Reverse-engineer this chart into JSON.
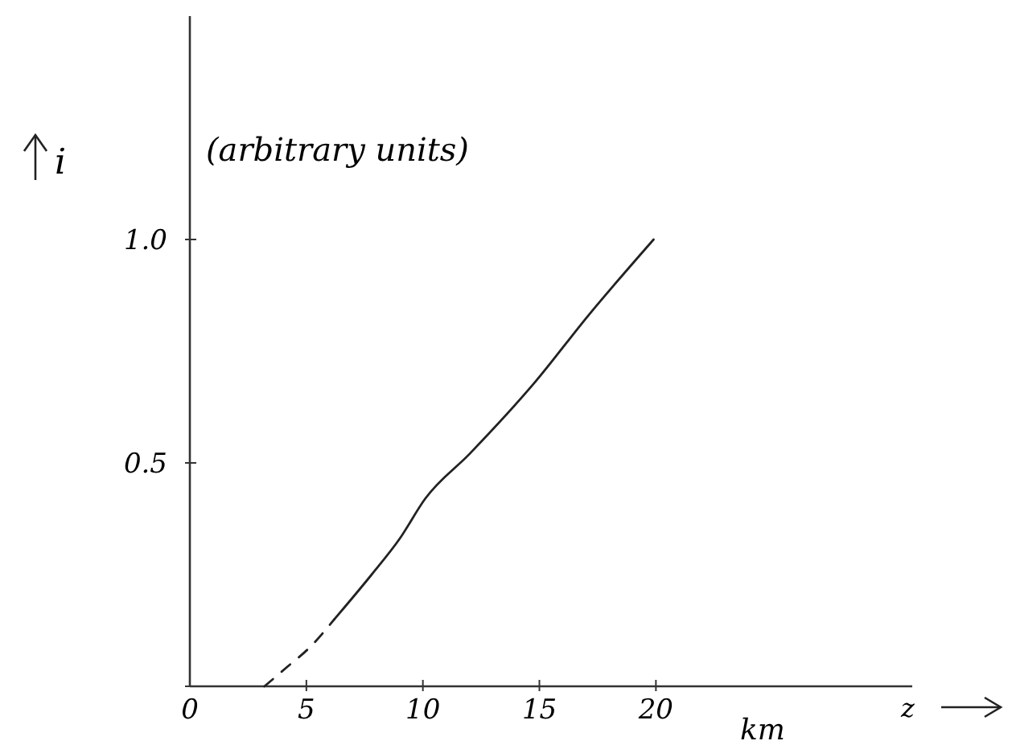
{
  "chart_data": {
    "type": "line",
    "xlabel": "z",
    "ylabel": "i",
    "annotations": [
      "(arbitrary units)",
      "km"
    ],
    "xlim": [
      0,
      31
    ],
    "ylim": [
      0,
      1.5
    ],
    "xticks": [
      0,
      5,
      10,
      15,
      20
    ],
    "yticks": [
      {
        "value": 0,
        "label": null
      },
      0.5,
      {
        "value": 1,
        "label": "1.0"
      }
    ],
    "grid": false,
    "marker": "none",
    "series": [
      {
        "color": "#222222",
        "line_style": "dashed",
        "x": [
          3.2,
          4.1,
          5.2,
          6.2
        ],
        "values": [
          0,
          0.04,
          0.09,
          0.15
        ]
      },
      {
        "color": "#222222",
        "line_style": "solid",
        "x": [
          6.2,
          7.8,
          9.0,
          10.1,
          12.0,
          14.8,
          17.1,
          19.9
        ],
        "values": [
          0.15,
          0.25,
          0.33,
          0.42,
          0.52,
          0.68,
          0.83,
          1.0
        ]
      }
    ]
  }
}
